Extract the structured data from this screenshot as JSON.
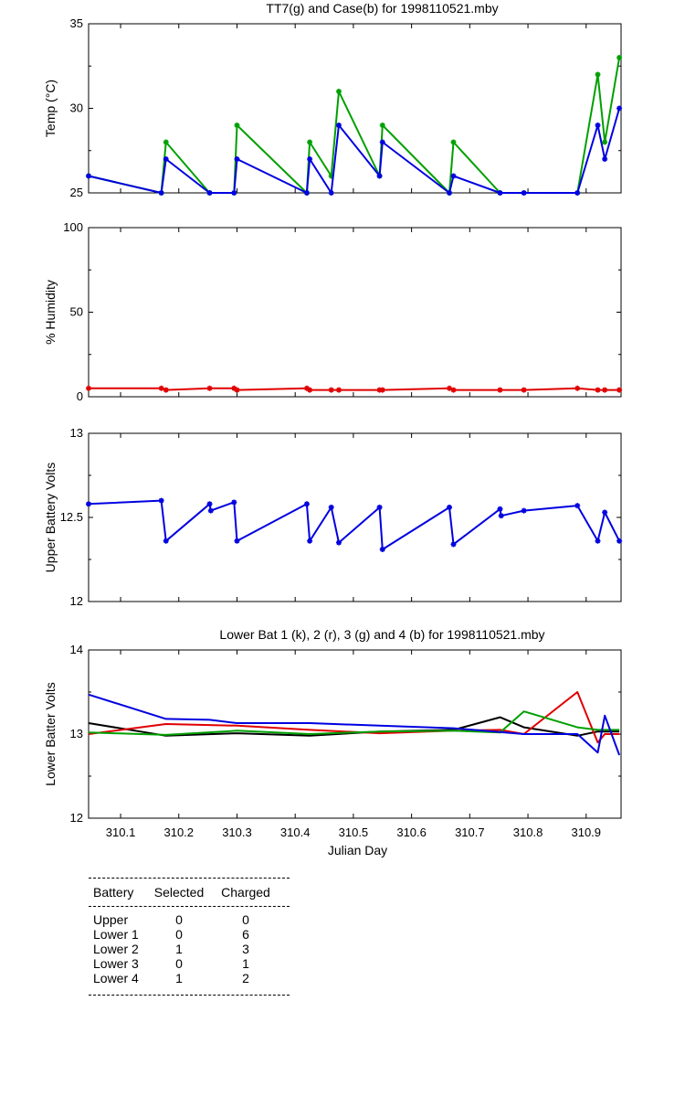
{
  "chart_data": [
    {
      "type": "line",
      "title": "TT7(g) and Case(b) for 1998110521.mby",
      "ylabel": "Temp  (°C)",
      "xlabel": "",
      "xlim": [
        310.045,
        310.96
      ],
      "ylim": [
        25,
        35
      ],
      "yticks": [
        "25",
        "30",
        "35"
      ],
      "series": [
        {
          "name": "TT7",
          "color": "#00a000",
          "x": [
            310.045,
            310.17,
            310.178,
            310.253,
            310.295,
            310.3,
            310.42,
            310.425,
            310.462,
            310.475,
            310.545,
            310.55,
            310.665,
            310.672,
            310.752,
            310.793,
            310.885,
            310.92,
            310.932,
            310.957
          ],
          "y": [
            26,
            25,
            28,
            25,
            25,
            29,
            25,
            28,
            26,
            31,
            26,
            29,
            25,
            28,
            25,
            25,
            25,
            32,
            28,
            33
          ]
        },
        {
          "name": "Case",
          "color": "#0000e0",
          "x": [
            310.045,
            310.17,
            310.178,
            310.253,
            310.295,
            310.3,
            310.42,
            310.425,
            310.462,
            310.475,
            310.545,
            310.55,
            310.665,
            310.672,
            310.752,
            310.793,
            310.885,
            310.92,
            310.932,
            310.957
          ],
          "y": [
            26,
            25,
            27,
            25,
            25,
            27,
            25,
            27,
            25,
            29,
            26,
            28,
            25,
            26,
            25,
            25,
            25,
            29,
            27,
            30
          ]
        }
      ]
    },
    {
      "type": "line",
      "title": "",
      "ylabel": "% Humidity",
      "xlabel": "",
      "xlim": [
        310.045,
        310.96
      ],
      "ylim": [
        0,
        100
      ],
      "yticks": [
        "0",
        "50",
        "100"
      ],
      "series": [
        {
          "name": "Humidity",
          "color": "#e00000",
          "x": [
            310.045,
            310.17,
            310.178,
            310.253,
            310.295,
            310.3,
            310.42,
            310.425,
            310.462,
            310.475,
            310.545,
            310.55,
            310.665,
            310.672,
            310.752,
            310.793,
            310.885,
            310.92,
            310.932,
            310.957
          ],
          "y": [
            5,
            5,
            4,
            5,
            5,
            4,
            5,
            4,
            4,
            4,
            4,
            4,
            5,
            4,
            4,
            4,
            5,
            4,
            4,
            4
          ]
        }
      ]
    },
    {
      "type": "line",
      "title": "",
      "ylabel": "Upper Battery Volts",
      "xlabel": "",
      "xlim": [
        310.045,
        310.96
      ],
      "ylim": [
        12,
        13
      ],
      "yticks": [
        "12",
        "12.5",
        "13"
      ],
      "series": [
        {
          "name": "Upper",
          "color": "#0000e0",
          "x": [
            310.045,
            310.17,
            310.178,
            310.253,
            310.255,
            310.295,
            310.3,
            310.42,
            310.425,
            310.462,
            310.475,
            310.545,
            310.55,
            310.665,
            310.672,
            310.752,
            310.754,
            310.793,
            310.885,
            310.92,
            310.932,
            310.957
          ],
          "y": [
            12.58,
            12.6,
            12.36,
            12.58,
            12.54,
            12.59,
            12.36,
            12.58,
            12.36,
            12.56,
            12.35,
            12.56,
            12.31,
            12.56,
            12.34,
            12.55,
            12.51,
            12.54,
            12.57,
            12.36,
            12.53,
            12.36
          ]
        }
      ]
    },
    {
      "type": "line",
      "title": "Lower Bat 1 (k), 2 (r), 3 (g) and 4 (b) for 1998110521.mby",
      "ylabel": "Lower Batter Volts",
      "xlabel": "Julian Day",
      "xlim": [
        310.045,
        310.96
      ],
      "ylim": [
        12,
        14
      ],
      "yticks": [
        "12",
        "13",
        "14"
      ],
      "xticks": [
        "310.1",
        "310.2",
        "310.3",
        "310.4",
        "310.5",
        "310.6",
        "310.7",
        "310.8",
        "310.9"
      ],
      "series": [
        {
          "name": "Lower 1",
          "color": "#000000",
          "x": [
            310.045,
            310.178,
            310.3,
            310.425,
            310.545,
            310.672,
            310.752,
            310.793,
            310.885,
            310.92,
            310.957
          ],
          "y": [
            13.13,
            12.98,
            13.01,
            12.98,
            13.03,
            13.05,
            13.2,
            13.08,
            12.98,
            13.03,
            13.03
          ]
        },
        {
          "name": "Lower 2",
          "color": "#e00000",
          "x": [
            310.045,
            310.178,
            310.3,
            310.425,
            310.545,
            310.672,
            310.752,
            310.793,
            310.885,
            310.92,
            310.932,
            310.957
          ],
          "y": [
            13.0,
            13.12,
            13.1,
            13.05,
            13.01,
            13.04,
            13.05,
            13.0,
            13.5,
            12.9,
            13.0,
            13.0
          ]
        },
        {
          "name": "Lower 3",
          "color": "#00a000",
          "x": [
            310.045,
            310.178,
            310.3,
            310.425,
            310.545,
            310.672,
            310.752,
            310.793,
            310.885,
            310.92,
            310.957
          ],
          "y": [
            13.02,
            12.99,
            13.04,
            13.0,
            13.03,
            13.04,
            13.02,
            13.27,
            13.08,
            13.05,
            13.05
          ]
        },
        {
          "name": "Lower 4",
          "color": "#0000e0",
          "x": [
            310.045,
            310.178,
            310.253,
            310.3,
            310.425,
            310.545,
            310.672,
            310.793,
            310.885,
            310.92,
            310.932,
            310.957
          ],
          "y": [
            13.47,
            13.18,
            13.17,
            13.13,
            13.13,
            13.1,
            13.07,
            13.0,
            13.0,
            12.78,
            13.22,
            12.75
          ]
        }
      ]
    }
  ],
  "table": {
    "headers": [
      "Battery",
      "Selected",
      "Charged"
    ],
    "rows": [
      [
        "Upper",
        "0",
        "0"
      ],
      [
        "Lower 1",
        "0",
        "6"
      ],
      [
        "Lower 2",
        "1",
        "3"
      ],
      [
        "Lower 3",
        "0",
        "1"
      ],
      [
        "Lower 4",
        "1",
        "2"
      ]
    ]
  }
}
